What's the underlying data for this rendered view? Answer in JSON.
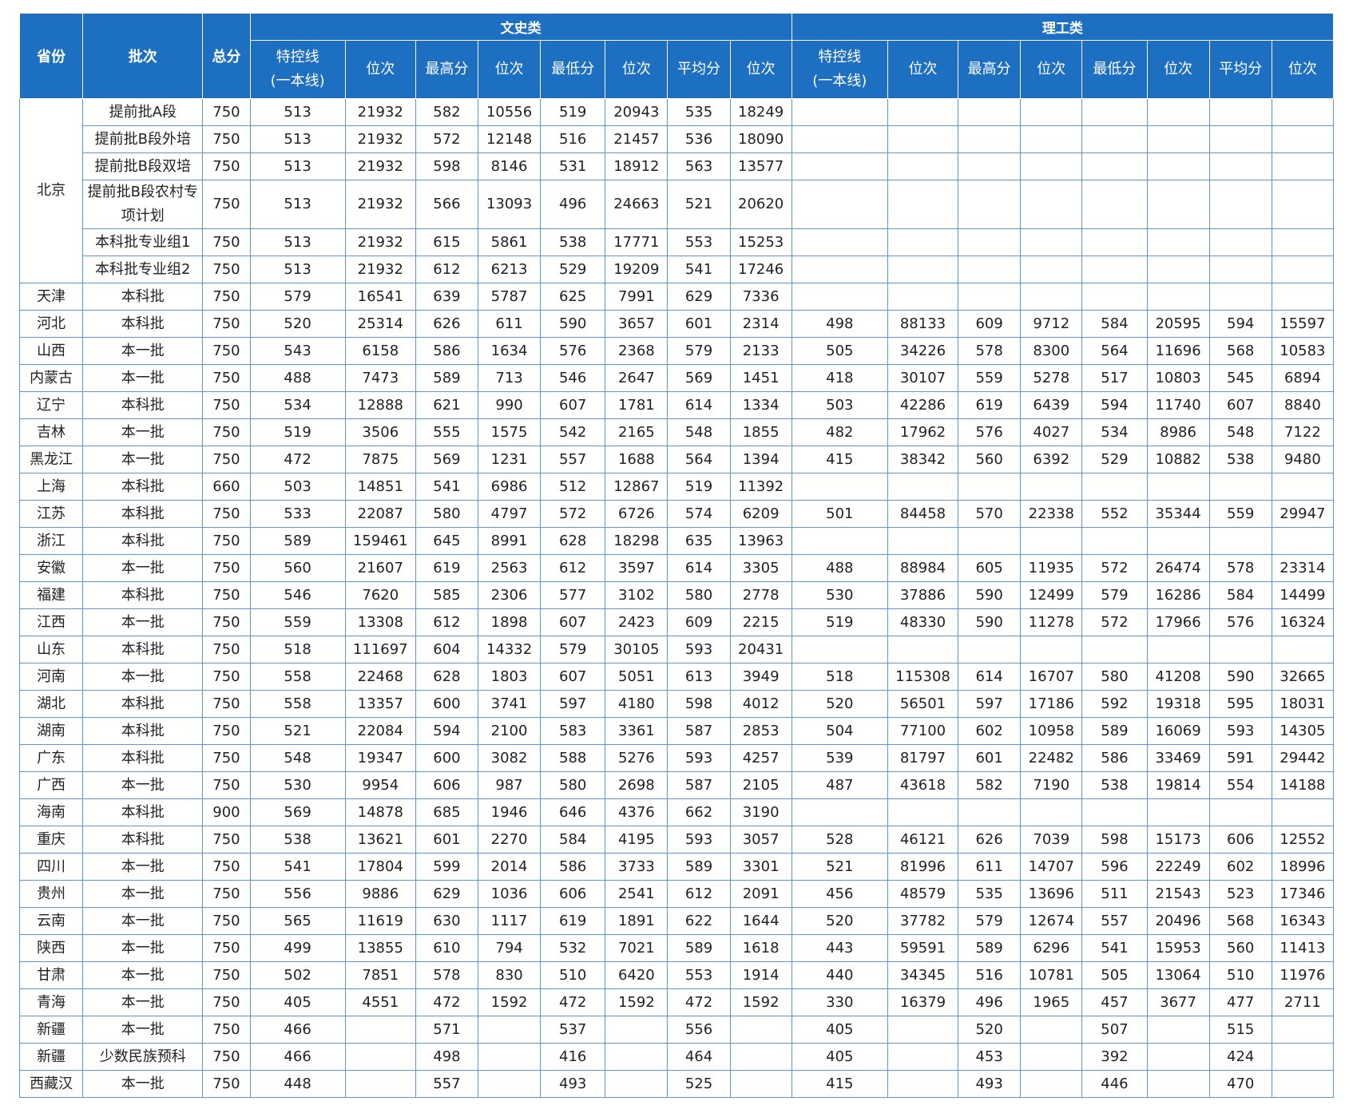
{
  "table": {
    "header": {
      "fixed": [
        "省份",
        "批次",
        "总分"
      ],
      "groups": [
        {
          "name": "文史类",
          "columns": [
            "特控线\n(一本线)",
            "位次",
            "最高分",
            "位次",
            "最低分",
            "位次",
            "平均分",
            "位次"
          ]
        },
        {
          "name": "理工类",
          "columns": [
            "特控线\n(一本线)",
            "位次",
            "最高分",
            "位次",
            "最低分",
            "位次",
            "平均分",
            "位次"
          ]
        }
      ]
    },
    "rows": [
      [
        "北京",
        "提前批A段",
        750,
        513,
        21932,
        582,
        10556,
        519,
        20943,
        535,
        18249,
        null,
        null,
        null,
        null,
        null,
        null,
        null,
        null
      ],
      [
        null,
        "提前批B段外培",
        750,
        513,
        21932,
        572,
        12148,
        516,
        21457,
        536,
        18090,
        null,
        null,
        null,
        null,
        null,
        null,
        null,
        null
      ],
      [
        null,
        "提前批B段双培",
        750,
        513,
        21932,
        598,
        8146,
        531,
        18912,
        563,
        13577,
        null,
        null,
        null,
        null,
        null,
        null,
        null,
        null
      ],
      [
        null,
        "提前批B段农村专项计划",
        750,
        513,
        21932,
        566,
        13093,
        496,
        24663,
        521,
        20620,
        null,
        null,
        null,
        null,
        null,
        null,
        null,
        null
      ],
      [
        null,
        "本科批专业组1",
        750,
        513,
        21932,
        615,
        5861,
        538,
        17771,
        553,
        15253,
        null,
        null,
        null,
        null,
        null,
        null,
        null,
        null
      ],
      [
        null,
        "本科批专业组2",
        750,
        513,
        21932,
        612,
        6213,
        529,
        19209,
        541,
        17246,
        null,
        null,
        null,
        null,
        null,
        null,
        null,
        null
      ],
      [
        "天津",
        "本科批",
        750,
        579,
        16541,
        639,
        5787,
        625,
        7991,
        629,
        7336,
        null,
        null,
        null,
        null,
        null,
        null,
        null,
        null
      ],
      [
        "河北",
        "本科批",
        750,
        520,
        25314,
        626,
        611,
        590,
        3657,
        601,
        2314,
        498,
        88133,
        609,
        9712,
        584,
        20595,
        594,
        15597
      ],
      [
        "山西",
        "本一批",
        750,
        543,
        6158,
        586,
        1634,
        576,
        2368,
        579,
        2133,
        505,
        34226,
        578,
        8300,
        564,
        11696,
        568,
        10583
      ],
      [
        "内蒙古",
        "本一批",
        750,
        488,
        7473,
        589,
        713,
        546,
        2647,
        569,
        1451,
        418,
        30107,
        559,
        5278,
        517,
        10803,
        545,
        6894
      ],
      [
        "辽宁",
        "本科批",
        750,
        534,
        12888,
        621,
        990,
        607,
        1781,
        614,
        1334,
        503,
        42286,
        619,
        6439,
        594,
        11740,
        607,
        8840
      ],
      [
        "吉林",
        "本一批",
        750,
        519,
        3506,
        555,
        1575,
        542,
        2165,
        548,
        1855,
        482,
        17962,
        576,
        4027,
        534,
        8986,
        548,
        7122
      ],
      [
        "黑龙江",
        "本一批",
        750,
        472,
        7875,
        569,
        1231,
        557,
        1688,
        564,
        1394,
        415,
        38342,
        560,
        6392,
        529,
        10882,
        538,
        9480
      ],
      [
        "上海",
        "本科批",
        660,
        503,
        14851,
        541,
        6986,
        512,
        12867,
        519,
        11392,
        null,
        null,
        null,
        null,
        null,
        null,
        null,
        null
      ],
      [
        "江苏",
        "本科批",
        750,
        533,
        22087,
        580,
        4797,
        572,
        6726,
        574,
        6209,
        501,
        84458,
        570,
        22338,
        552,
        35344,
        559,
        29947
      ],
      [
        "浙江",
        "本科批",
        750,
        589,
        159461,
        645,
        8991,
        628,
        18298,
        635,
        13963,
        null,
        null,
        null,
        null,
        null,
        null,
        null,
        null
      ],
      [
        "安徽",
        "本一批",
        750,
        560,
        21607,
        619,
        2563,
        612,
        3597,
        614,
        3305,
        488,
        88984,
        605,
        11935,
        572,
        26474,
        578,
        23314
      ],
      [
        "福建",
        "本科批",
        750,
        546,
        7620,
        585,
        2306,
        577,
        3102,
        580,
        2778,
        530,
        37886,
        590,
        12499,
        579,
        16286,
        584,
        14499
      ],
      [
        "江西",
        "本一批",
        750,
        559,
        13308,
        612,
        1898,
        607,
        2423,
        609,
        2215,
        519,
        48330,
        590,
        11278,
        572,
        17966,
        576,
        16324
      ],
      [
        "山东",
        "本科批",
        750,
        518,
        111697,
        604,
        14332,
        579,
        30105,
        593,
        20431,
        null,
        null,
        null,
        null,
        null,
        null,
        null,
        null
      ],
      [
        "河南",
        "本一批",
        750,
        558,
        22468,
        628,
        1803,
        607,
        5051,
        613,
        3949,
        518,
        115308,
        614,
        16707,
        580,
        41208,
        590,
        32665
      ],
      [
        "湖北",
        "本科批",
        750,
        558,
        13357,
        600,
        3741,
        597,
        4180,
        598,
        4012,
        520,
        56501,
        597,
        17186,
        592,
        19318,
        595,
        18031
      ],
      [
        "湖南",
        "本科批",
        750,
        521,
        22084,
        594,
        2100,
        583,
        3361,
        587,
        2853,
        504,
        77100,
        602,
        10958,
        589,
        16069,
        593,
        14305
      ],
      [
        "广东",
        "本科批",
        750,
        548,
        19347,
        600,
        3082,
        588,
        5276,
        593,
        4257,
        539,
        81797,
        601,
        22482,
        586,
        33469,
        591,
        29442
      ],
      [
        "广西",
        "本一批",
        750,
        530,
        9954,
        606,
        987,
        580,
        2698,
        587,
        2105,
        487,
        43618,
        582,
        7190,
        538,
        19814,
        554,
        14188
      ],
      [
        "海南",
        "本科批",
        900,
        569,
        14878,
        685,
        1946,
        646,
        4376,
        662,
        3190,
        null,
        null,
        null,
        null,
        null,
        null,
        null,
        null
      ],
      [
        "重庆",
        "本科批",
        750,
        538,
        13621,
        601,
        2270,
        584,
        4195,
        593,
        3057,
        528,
        46121,
        626,
        7039,
        598,
        15173,
        606,
        12552
      ],
      [
        "四川",
        "本一批",
        750,
        541,
        17804,
        599,
        2014,
        586,
        3733,
        589,
        3301,
        521,
        81996,
        611,
        14707,
        596,
        22249,
        602,
        18996
      ],
      [
        "贵州",
        "本一批",
        750,
        556,
        9886,
        629,
        1036,
        606,
        2541,
        612,
        2091,
        456,
        48579,
        535,
        13696,
        511,
        21543,
        523,
        17346
      ],
      [
        "云南",
        "本一批",
        750,
        565,
        11619,
        630,
        1117,
        619,
        1891,
        622,
        1644,
        520,
        37782,
        579,
        12674,
        557,
        20496,
        568,
        16343
      ],
      [
        "陕西",
        "本一批",
        750,
        499,
        13855,
        610,
        794,
        532,
        7021,
        589,
        1618,
        443,
        59591,
        589,
        6296,
        541,
        15953,
        560,
        11413
      ],
      [
        "甘肃",
        "本一批",
        750,
        502,
        7851,
        578,
        830,
        510,
        6420,
        553,
        1914,
        440,
        34345,
        516,
        10781,
        505,
        13064,
        510,
        11976
      ],
      [
        "青海",
        "本一批",
        750,
        405,
        4551,
        472,
        1592,
        472,
        1592,
        472,
        1592,
        330,
        16379,
        496,
        1965,
        457,
        3677,
        477,
        2711
      ],
      [
        "新疆",
        "本一批",
        750,
        466,
        null,
        571,
        null,
        537,
        null,
        556,
        null,
        405,
        null,
        520,
        null,
        507,
        null,
        515,
        null
      ],
      [
        "新疆",
        "少数民族预科",
        750,
        466,
        null,
        498,
        null,
        416,
        null,
        464,
        null,
        405,
        null,
        453,
        null,
        392,
        null,
        424,
        null
      ],
      [
        "西藏汉",
        "本一批",
        750,
        448,
        null,
        557,
        null,
        493,
        null,
        525,
        null,
        415,
        null,
        493,
        null,
        446,
        null,
        470,
        null
      ]
    ]
  }
}
